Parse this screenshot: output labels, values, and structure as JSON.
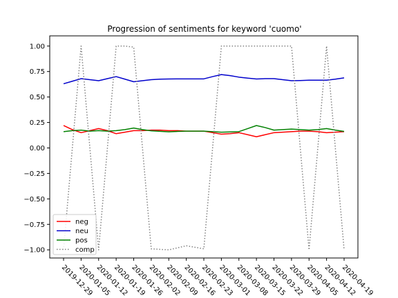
{
  "chart_data": {
    "type": "line",
    "title": "Progression of sentiments for keyword 'cuomo'",
    "xlabel": "",
    "ylabel": "",
    "ylim": [
      -1.08,
      1.1
    ],
    "y_ticks": [
      1.0,
      0.75,
      0.5,
      0.25,
      0.0,
      -0.25,
      -0.5,
      -0.75,
      -1.0
    ],
    "y_tick_labels": [
      "1.00",
      "0.75",
      "0.50",
      "0.25",
      "0.00",
      "−0.25",
      "−0.50",
      "−0.75",
      "−1.00"
    ],
    "x_tick_labels": [
      "2019-12-29",
      "2020-01-05",
      "2020-01-12",
      "2020-01-19",
      "2020-01-26",
      "2020-02-02",
      "2020-02-09",
      "2020-02-16",
      "2020-02-23",
      "2020-03-01",
      "2020-03-08",
      "2020-03-15",
      "2020-03-22",
      "2020-03-29",
      "2020-04-05",
      "2020-04-12",
      "2020-04-19"
    ],
    "x_index": [
      0,
      0.5,
      1,
      1.5,
      2,
      2.5,
      3,
      3.5,
      4,
      4.5,
      5,
      5.5,
      6,
      6.5,
      7,
      7.5,
      8,
      8.5,
      9,
      9.5,
      10,
      10.5,
      11,
      11.5,
      12,
      12.5,
      13,
      13.5,
      14,
      14.5,
      15,
      15.5,
      16
    ],
    "grid": false,
    "legend_position": "lower-left",
    "series": [
      {
        "name": "neg",
        "color": "#ff0000",
        "style": "solid",
        "values": [
          0.22,
          0.18,
          0.15,
          0.17,
          0.19,
          0.17,
          0.14,
          0.155,
          0.17,
          0.17,
          0.175,
          0.175,
          0.17,
          0.17,
          0.165,
          0.165,
          0.165,
          0.15,
          0.135,
          0.14,
          0.15,
          0.13,
          0.11,
          0.13,
          0.15,
          0.155,
          0.16,
          0.165,
          0.165,
          0.16,
          0.15,
          0.155,
          0.16
        ]
      },
      {
        "name": "neu",
        "color": "#0000cc",
        "style": "solid",
        "values": [
          0.63,
          0.655,
          0.68,
          0.67,
          0.66,
          0.68,
          0.7,
          0.675,
          0.65,
          0.66,
          0.67,
          0.675,
          0.677,
          0.678,
          0.678,
          0.678,
          0.678,
          0.7,
          0.72,
          0.71,
          0.695,
          0.685,
          0.677,
          0.68,
          0.68,
          0.67,
          0.66,
          0.662,
          0.665,
          0.665,
          0.665,
          0.675,
          0.688
        ]
      },
      {
        "name": "pos",
        "color": "#008000",
        "style": "solid",
        "values": [
          0.16,
          0.17,
          0.175,
          0.165,
          0.17,
          0.165,
          0.17,
          0.18,
          0.195,
          0.18,
          0.168,
          0.163,
          0.158,
          0.162,
          0.165,
          0.165,
          0.165,
          0.16,
          0.155,
          0.157,
          0.16,
          0.19,
          0.22,
          0.2,
          0.175,
          0.18,
          0.185,
          0.18,
          0.175,
          0.18,
          0.19,
          0.175,
          0.162
        ]
      },
      {
        "name": "comp",
        "color": "#808080",
        "style": "dotted",
        "values": [
          -1.0,
          0.0,
          1.0,
          0.0,
          -1.0,
          0.0,
          1.0,
          1.0,
          0.99,
          0.0,
          -0.99,
          -0.995,
          -1.0,
          -0.98,
          -0.96,
          -0.975,
          -0.99,
          0.0,
          1.0,
          1.0,
          1.0,
          1.0,
          1.0,
          1.0,
          1.0,
          1.0,
          1.0,
          0.0,
          -1.0,
          0.0,
          1.0,
          0.0,
          -1.0
        ]
      }
    ]
  }
}
